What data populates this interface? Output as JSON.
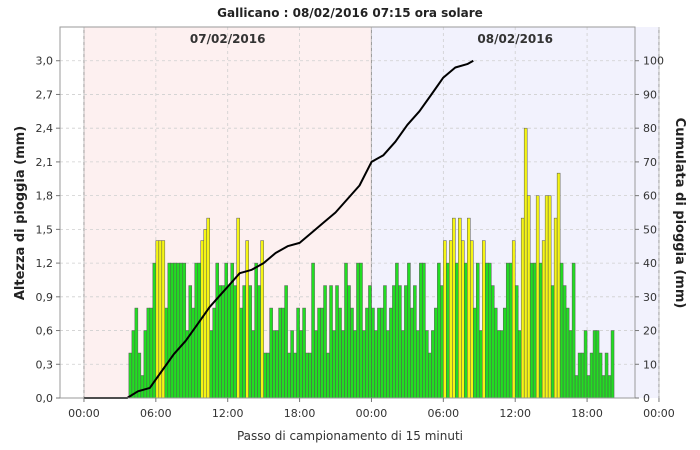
{
  "chart_data": {
    "type": "bar",
    "title": "Gallicano : 08/02/2016 07:15 ora solare",
    "xlabel": "Passo di campionamento di 15 minuti",
    "ylabel_left": "Altezza di pioggia (mm)",
    "ylabel_right": "Cumulata di pioggia (mm)",
    "ylim_left": [
      0,
      3.3
    ],
    "ylim_right": [
      0,
      110
    ],
    "yticks_left": [
      "0,0",
      "0,3",
      "0,6",
      "0,9",
      "1,2",
      "1,5",
      "1,8",
      "2,1",
      "2,4",
      "2,7",
      "3,0"
    ],
    "yticks_right": [
      "0",
      "10",
      "20",
      "30",
      "40",
      "50",
      "60",
      "70",
      "80",
      "90",
      "100"
    ],
    "xlim_hours": [
      -2,
      46
    ],
    "xticks": [
      {
        "h": 0,
        "label": "00:00"
      },
      {
        "h": 6,
        "label": "06:00"
      },
      {
        "h": 12,
        "label": "12:00"
      },
      {
        "h": 18,
        "label": "18:00"
      },
      {
        "h": 24,
        "label": "00:00"
      },
      {
        "h": 30,
        "label": "06:00"
      },
      {
        "h": 36,
        "label": "12:00"
      },
      {
        "h": 42,
        "label": "18:00"
      },
      {
        "h": 48,
        "label": "00:00"
      }
    ],
    "days": [
      {
        "label": "07/02/2016",
        "start_h": 0,
        "end_h": 24,
        "color": "#fdf0f0"
      },
      {
        "label": "08/02/2016",
        "start_h": 24,
        "end_h": 48,
        "color": "#f2f2fd"
      }
    ],
    "grid": true,
    "series": [
      {
        "name": "",
        "kind": "bar",
        "step_minutes": 15,
        "start_h": 3.75,
        "colors": {
          "normal": "#22dd22",
          "high": "#f5f514"
        },
        "high_threshold": 1.35,
        "values": [
          0.4,
          0.6,
          0.8,
          0.4,
          0.2,
          0.6,
          0.8,
          0.8,
          1.2,
          1.4,
          1.4,
          1.4,
          0.8,
          1.2,
          1.2,
          1.2,
          1.2,
          1.2,
          1.2,
          0.6,
          1.0,
          0.8,
          1.2,
          1.2,
          1.4,
          1.5,
          1.6,
          0.6,
          0.8,
          1.2,
          1.0,
          1.0,
          1.2,
          1.0,
          1.2,
          1.0,
          1.6,
          0.8,
          1.0,
          1.4,
          1.0,
          0.6,
          1.2,
          1.0,
          1.4,
          0.4,
          0.4,
          0.8,
          0.6,
          0.6,
          0.8,
          0.8,
          1.0,
          0.4,
          0.6,
          0.4,
          0.8,
          0.6,
          0.8,
          0.4,
          0.4,
          1.2,
          0.6,
          0.8,
          0.8,
          1.0,
          0.4,
          1.0,
          0.6,
          1.0,
          0.8,
          0.6,
          1.2,
          1.0,
          0.8,
          0.6,
          1.2,
          1.2,
          0.6,
          0.8,
          1.0,
          0.8,
          0.6,
          0.8,
          0.8,
          1.0,
          0.6,
          0.8,
          1.0,
          1.2,
          1.0,
          0.6,
          1.0,
          1.2,
          0.8,
          1.0,
          0.6,
          1.2,
          1.2,
          0.6,
          0.4,
          0.6,
          0.8,
          1.2,
          1.0,
          1.4,
          1.2,
          1.4,
          1.6,
          1.2,
          1.6,
          1.4,
          1.2,
          1.6,
          1.4,
          0.8,
          1.2,
          0.6,
          1.4,
          1.2,
          1.2,
          1.0,
          0.8,
          0.6,
          0.6,
          0.8,
          1.2,
          1.2,
          1.4,
          1.0,
          0.6,
          1.6,
          2.4,
          1.8,
          1.2,
          1.2,
          1.8,
          1.2,
          1.4,
          1.8,
          1.8,
          1.0,
          1.6,
          2.0,
          1.2,
          1.0,
          0.8,
          0.6,
          1.2,
          0.2,
          0.4,
          0.4,
          0.6,
          0.2,
          0.4,
          0.6,
          0.6,
          0.4,
          0.2,
          0.4,
          0.2,
          0.6
        ]
      },
      {
        "name": "",
        "kind": "line",
        "axis": "right",
        "color": "#000000",
        "points": [
          [
            0,
            0
          ],
          [
            3.6,
            0
          ],
          [
            4.5,
            2
          ],
          [
            5.5,
            3
          ],
          [
            6.5,
            8
          ],
          [
            7.5,
            13
          ],
          [
            8.5,
            17
          ],
          [
            9.5,
            22
          ],
          [
            10.5,
            27
          ],
          [
            11.5,
            31
          ],
          [
            12.5,
            35
          ],
          [
            13,
            37
          ],
          [
            14,
            38
          ],
          [
            15,
            40
          ],
          [
            16,
            43
          ],
          [
            17,
            45
          ],
          [
            18,
            46
          ],
          [
            19,
            49
          ],
          [
            20,
            52
          ],
          [
            21,
            55
          ],
          [
            22,
            59
          ],
          [
            23,
            63
          ],
          [
            24,
            70
          ],
          [
            25,
            72
          ],
          [
            26,
            76
          ],
          [
            27,
            81
          ],
          [
            28,
            85
          ],
          [
            29,
            90
          ],
          [
            30,
            95
          ],
          [
            31,
            98
          ],
          [
            32,
            99
          ],
          [
            32.5,
            100
          ]
        ]
      }
    ]
  }
}
